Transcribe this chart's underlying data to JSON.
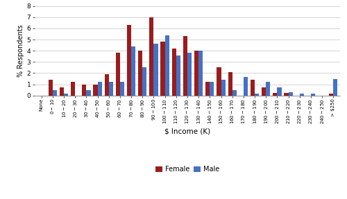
{
  "categories": [
    "None",
    "$0-$10",
    "$10-$20",
    "$20-$30",
    "$30-$40",
    "$40-$50",
    "$50-$60",
    "$60-$70",
    "$70-$80",
    "$80-$90",
    "$90-$100",
    "$100-$110",
    "$110-$120",
    "$120-$130",
    "$130-$140",
    "$140-$150",
    "$150-$160",
    "$160-$170",
    "$170-$180",
    "$180-$190",
    "$190-$200",
    "$200-$210",
    "$210-$220",
    "$220-$230",
    "$230-$240",
    "$240-$250",
    "> $250"
  ],
  "female": [
    0.0,
    1.4,
    0.7,
    1.2,
    1.0,
    1.0,
    1.9,
    3.8,
    6.3,
    4.0,
    7.0,
    4.8,
    4.2,
    5.3,
    4.0,
    1.2,
    2.5,
    2.1,
    0.0,
    1.4,
    0.7,
    0.25,
    0.25,
    0.0,
    0.0,
    0.0,
    0.2
  ],
  "male": [
    0.0,
    0.5,
    0.2,
    0.0,
    0.5,
    1.2,
    1.2,
    1.2,
    4.4,
    2.5,
    4.6,
    5.4,
    3.6,
    3.8,
    4.0,
    1.2,
    1.4,
    0.5,
    1.65,
    0.2,
    1.2,
    0.75,
    0.3,
    0.2,
    0.2,
    0.0,
    1.5
  ],
  "female_color": "#9b1c1c",
  "male_color": "#4472c4",
  "ylabel": "% Respondents",
  "xlabel": "$ Income (K)",
  "ylim": [
    0,
    8
  ],
  "yticks": [
    0,
    1,
    2,
    3,
    4,
    5,
    6,
    7,
    8
  ],
  "legend_labels": [
    "Female",
    "Male"
  ],
  "bar_width": 0.38,
  "background_color": "#ffffff",
  "grid_color": "#cccccc"
}
